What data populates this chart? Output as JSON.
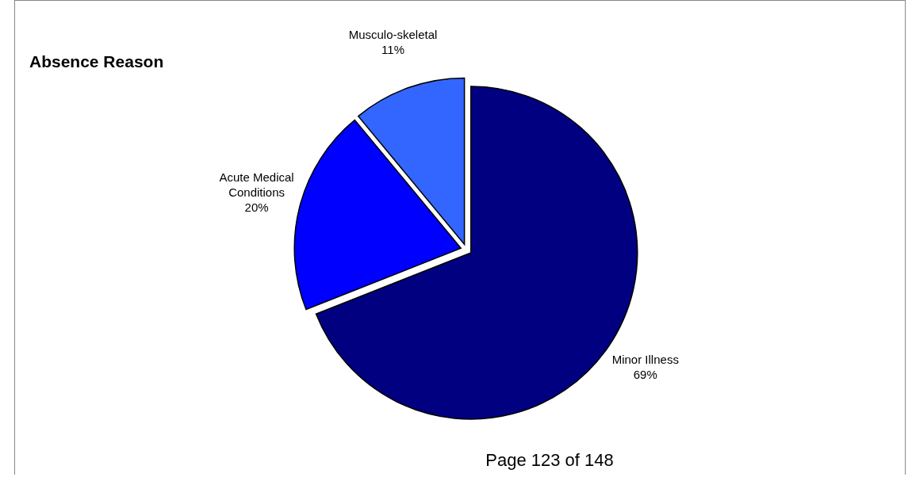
{
  "chart_data": {
    "type": "pie",
    "title": "Absence Reason",
    "categories": [
      "Minor Illness",
      "Acute Medical Conditions",
      "Musculo-skeletal"
    ],
    "values": [
      69,
      20,
      11
    ],
    "value_labels": [
      "69%",
      "20%",
      "11%"
    ],
    "colors": [
      "#000080",
      "#0000ff",
      "#3366ff"
    ],
    "annotations": [
      "Page 123 of 148"
    ]
  }
}
